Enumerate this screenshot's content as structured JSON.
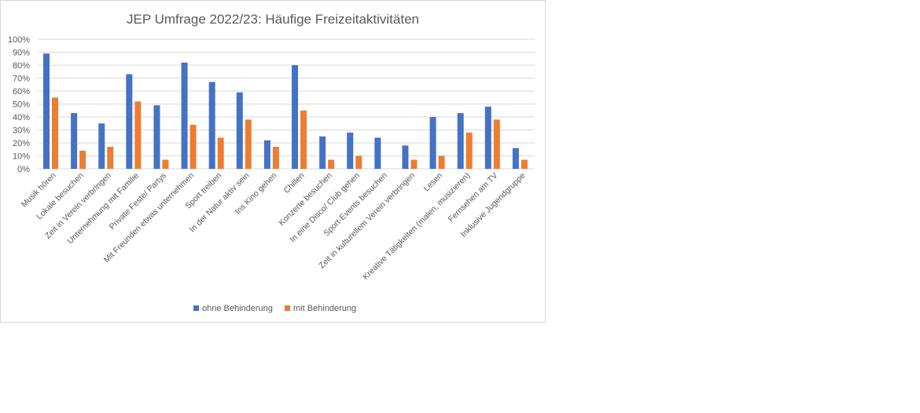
{
  "chart_data": {
    "type": "bar",
    "title": "JEP Umfrage 2022/23: Häufige Freizeitaktivitäten",
    "categories": [
      "Musik hören",
      "Lokale besuchen",
      "Zeit in Verein verbringen",
      "Unternehmung mit Familie",
      "Private Feste/ Partys",
      "Mit Freunden etwas unternehmen",
      "Sport treiben",
      "In der Natur aktiv sein",
      "Ins Kino gehen",
      "Chillen",
      "Konzerte besuchen",
      "In eine Disco/ Club gehen",
      "Sport-Events besuchen",
      "Zeit in kulturellem Verein verbringen",
      "Lesen",
      "Kreative Tätigkeiten (malen, musizieren)",
      "Fernsehen am TV",
      "Inklusive Jugendgruppe"
    ],
    "series": [
      {
        "name": "ohne Behinderung",
        "color": "#4472c4",
        "values": [
          89,
          43,
          35,
          73,
          49,
          82,
          67,
          59,
          22,
          80,
          25,
          28,
          24,
          18,
          40,
          43,
          48,
          16
        ]
      },
      {
        "name": "mit Behinderung",
        "color": "#ed7d31",
        "values": [
          55,
          14,
          17,
          52,
          7,
          34,
          24,
          38,
          17,
          45,
          7,
          10,
          0,
          7,
          10,
          28,
          38,
          7
        ]
      }
    ],
    "yticks": [
      "0%",
      "10%",
      "20%",
      "30%",
      "40%",
      "50%",
      "60%",
      "70%",
      "80%",
      "90%",
      "100%"
    ],
    "ylim": [
      0,
      100
    ],
    "grid": true,
    "legend": "bottom"
  }
}
